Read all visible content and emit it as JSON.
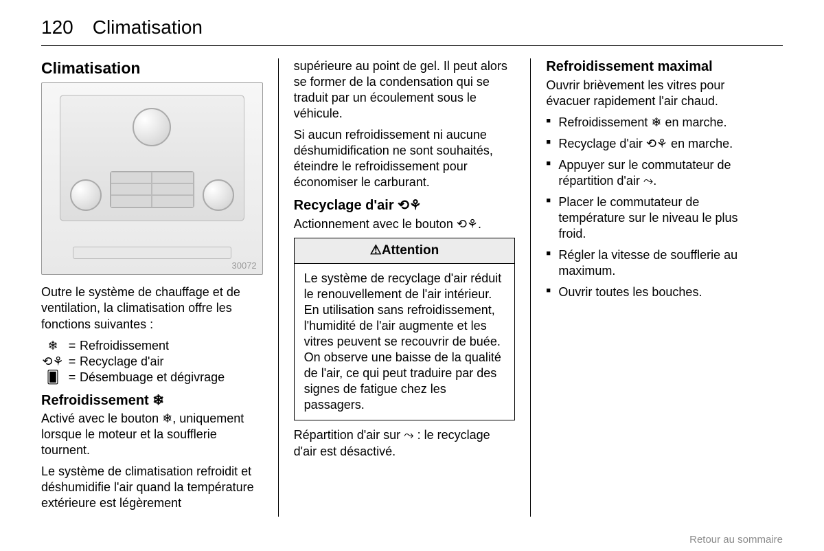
{
  "header": {
    "page_number": "120",
    "title": "Climatisation"
  },
  "col1": {
    "heading": "Climatisation",
    "image_number": "30072",
    "intro": "Outre le système de chauffage et de ventilation, la climatisation offre les fonctions suivantes :",
    "functions": [
      {
        "symbol": "❄",
        "label": "Refroidissement"
      },
      {
        "symbol": "⟲⚘",
        "label": "Recyclage d'air"
      },
      {
        "symbol": "🂠",
        "label": "Désembuage et dégivrage"
      }
    ],
    "sub_heading": "Refroidissement ❄",
    "p1": "Activé avec le bouton ❄, uniquement lorsque le moteur et la soufflerie tournent.",
    "p2": "Le système de climatisation refroidit et déshumidifie l'air quand la température extérieure est légèrement"
  },
  "col2": {
    "p1": "supérieure au point de gel. Il peut alors se former de la condensation qui se traduit par un écoulement sous le véhicule.",
    "p2": "Si aucun refroidissement ni aucune déshumidification ne sont souhaités, éteindre le refroidissement pour économiser le carburant.",
    "sub_heading": "Recyclage d'air ⟲⚘",
    "p3": "Actionnement avec le bouton ⟲⚘.",
    "warning_title": "⚠Attention",
    "warning_body": "Le système de recyclage d'air réduit le renouvellement de l'air intérieur. En utilisation sans refroidissement, l'humidité de l'air augmente et les vitres peuvent se recouvrir de buée. On observe une baisse de la qualité de l'air, ce qui peut traduire par des signes de fatigue chez les passagers.",
    "p4": "Répartition d'air sur ⤳ : le recyclage d'air est désactivé."
  },
  "col3": {
    "heading": "Refroidissement maximal",
    "intro": "Ouvrir brièvement les vitres pour évacuer rapidement l'air chaud.",
    "items": [
      "Refroidissement ❄ en marche.",
      "Recyclage d'air ⟲⚘ en marche.",
      "Appuyer sur le commutateur de répartition d'air ⤳.",
      "Placer le commutateur de température sur le niveau le plus froid.",
      "Régler la vitesse de soufflerie au maximum.",
      "Ouvrir toutes les bouches."
    ]
  },
  "footer": {
    "link": "Retour au sommaire"
  }
}
